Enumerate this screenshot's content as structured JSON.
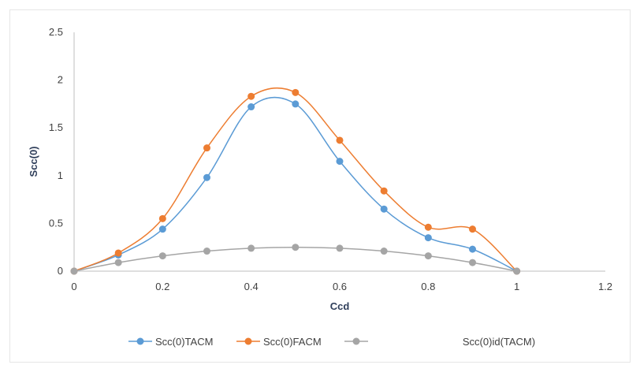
{
  "chart_data": {
    "type": "line",
    "title": "",
    "xlabel": "Ccd",
    "ylabel": "Scc(0)",
    "xlim": [
      0,
      1.2
    ],
    "ylim": [
      0,
      2.5
    ],
    "x_ticks": [
      "0",
      "0.2",
      "0.4",
      "0.6",
      "0.8",
      "1",
      "1.2"
    ],
    "y_ticks": [
      "0",
      "0.5",
      "1",
      "1.5",
      "2",
      "2.5"
    ],
    "grid": false,
    "smooth": true,
    "legend_position": "bottom",
    "x": [
      0,
      0.1,
      0.2,
      0.3,
      0.4,
      0.5,
      0.6,
      0.7,
      0.8,
      0.9,
      1.0
    ],
    "series": [
      {
        "name": "Scc(0)TACM",
        "color": "#5b9bd5",
        "values": [
          0,
          0.17,
          0.44,
          0.98,
          1.72,
          1.75,
          1.15,
          0.65,
          0.35,
          0.23,
          0
        ]
      },
      {
        "name": "Scc(0)FACM",
        "color": "#ed7d31",
        "values": [
          0,
          0.19,
          0.55,
          1.29,
          1.83,
          1.87,
          1.37,
          0.84,
          0.46,
          0.44,
          0
        ]
      },
      {
        "name": "Scc(0)id(TACM)",
        "color": "#a5a5a5",
        "values": [
          0,
          0.09,
          0.16,
          0.21,
          0.24,
          0.25,
          0.24,
          0.21,
          0.16,
          0.09,
          0
        ]
      }
    ]
  }
}
